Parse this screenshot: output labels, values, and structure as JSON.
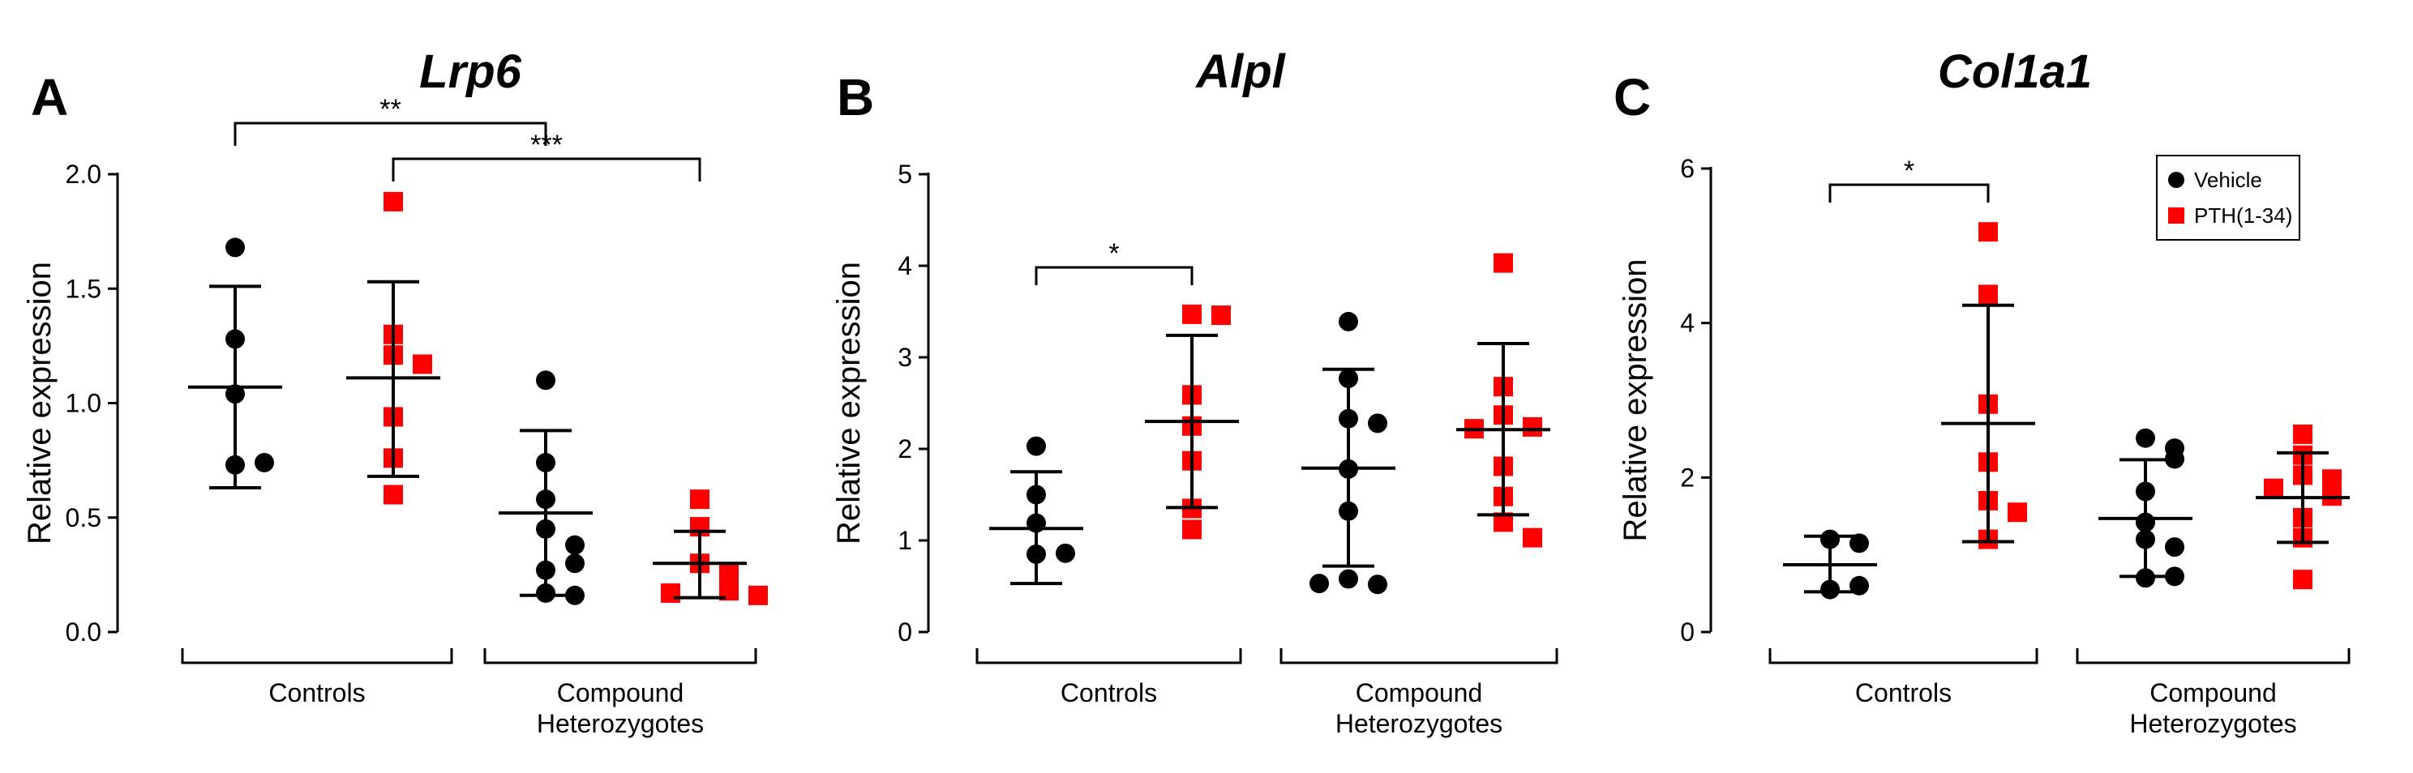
{
  "chart_data": [
    {
      "type": "scatter",
      "panel_letter": "A",
      "title": "Lrp6",
      "ylabel": "Relative expression",
      "ylim": [
        0,
        2.0
      ],
      "yticks": [
        0.0,
        0.5,
        1.0,
        1.5,
        2.0
      ],
      "ytick_labels": [
        "0.0",
        "0.5",
        "1.0",
        "1.5",
        "2.0"
      ],
      "groups": [
        {
          "label": "Controls",
          "columns": [
            0,
            1
          ]
        },
        {
          "label": "Compound Heterozygotes",
          "label_lines": [
            "Compound",
            "Heterozygotes"
          ],
          "columns": [
            2,
            3
          ]
        }
      ],
      "series": [
        {
          "name": "Vehicle",
          "group": "Controls",
          "values": [
            1.68,
            1.28,
            1.04,
            0.73,
            0.74
          ],
          "mean": 1.07,
          "sd_upper": 1.51,
          "sd_lower": 0.63
        },
        {
          "name": "PTH(1-34)",
          "group": "Controls",
          "values": [
            1.88,
            1.3,
            1.21,
            1.17,
            0.94,
            0.76,
            0.6
          ],
          "mean": 1.11,
          "sd_upper": 1.53,
          "sd_lower": 0.68
        },
        {
          "name": "Vehicle",
          "group": "Compound Heterozygotes",
          "values": [
            1.1,
            0.74,
            0.58,
            0.45,
            0.38,
            0.27,
            0.3,
            0.17,
            0.16
          ],
          "mean": 0.52,
          "sd_upper": 0.88,
          "sd_lower": 0.16
        },
        {
          "name": "PTH(1-34)",
          "group": "Compound Heterozygotes",
          "values": [
            0.58,
            0.46,
            0.3,
            0.26,
            0.22,
            0.18,
            0.17,
            0.16
          ],
          "mean": 0.3,
          "sd_upper": 0.44,
          "sd_lower": 0.15
        }
      ],
      "significance": [
        {
          "from": 0,
          "to": 2,
          "label": "**"
        },
        {
          "from": 1,
          "to": 3,
          "label": "***"
        }
      ]
    },
    {
      "type": "scatter",
      "panel_letter": "B",
      "title": "Alpl",
      "ylabel": "Relative expression",
      "ylim": [
        0,
        5
      ],
      "yticks": [
        0,
        1,
        2,
        3,
        4,
        5
      ],
      "ytick_labels": [
        "0",
        "1",
        "2",
        "3",
        "4",
        "5"
      ],
      "groups": [
        {
          "label": "Controls",
          "columns": [
            0,
            1
          ]
        },
        {
          "label": "Compound Heterozygotes",
          "label_lines": [
            "Compound",
            "Heterozygotes"
          ],
          "columns": [
            2,
            3
          ]
        }
      ],
      "series": [
        {
          "name": "Vehicle",
          "group": "Controls",
          "values": [
            2.03,
            1.5,
            1.19,
            0.85,
            0.86
          ],
          "mean": 1.13,
          "sd_upper": 1.75,
          "sd_lower": 0.53
        },
        {
          "name": "PTH(1-34)",
          "group": "Controls",
          "values": [
            3.47,
            3.46,
            2.59,
            2.25,
            1.87,
            1.35,
            1.12
          ],
          "mean": 2.3,
          "sd_upper": 3.24,
          "sd_lower": 1.36
        },
        {
          "name": "Vehicle",
          "group": "Compound Heterozygotes",
          "values": [
            3.39,
            2.77,
            2.33,
            2.28,
            1.78,
            1.32,
            0.58,
            0.52,
            0.53
          ],
          "mean": 1.79,
          "sd_upper": 2.87,
          "sd_lower": 0.72
        },
        {
          "name": "PTH(1-34)",
          "group": "Compound Heterozygotes",
          "values": [
            4.03,
            2.68,
            2.37,
            2.24,
            2.22,
            1.81,
            1.48,
            1.2,
            1.03
          ],
          "mean": 2.21,
          "sd_upper": 3.15,
          "sd_lower": 1.28
        }
      ],
      "significance": [
        {
          "from": 0,
          "to": 1,
          "label": "*"
        }
      ]
    },
    {
      "type": "scatter",
      "panel_letter": "C",
      "title": "Col1a1",
      "ylabel": "Relative expression",
      "ylim": [
        0,
        6
      ],
      "yticks": [
        0,
        2,
        4,
        6
      ],
      "ytick_labels": [
        "0",
        "2",
        "4",
        "6"
      ],
      "groups": [
        {
          "label": "Controls",
          "columns": [
            0,
            1
          ]
        },
        {
          "label": "Compound Heterozygotes",
          "label_lines": [
            "Compound",
            "Heterozygotes"
          ],
          "columns": [
            2,
            3
          ]
        }
      ],
      "series": [
        {
          "name": "Vehicle",
          "group": "Controls",
          "values": [
            1.2,
            1.15,
            0.55,
            0.6
          ],
          "mean": 0.87,
          "sd_upper": 1.24,
          "sd_lower": 0.52
        },
        {
          "name": "PTH(1-34)",
          "group": "Controls",
          "values": [
            5.18,
            4.37,
            2.95,
            2.2,
            1.7,
            1.55,
            1.2
          ],
          "mean": 2.7,
          "sd_upper": 4.23,
          "sd_lower": 1.17
        },
        {
          "name": "Vehicle",
          "group": "Compound Heterozygotes",
          "values": [
            2.51,
            2.38,
            2.24,
            1.82,
            1.42,
            1.2,
            1.1,
            0.7,
            0.72
          ],
          "mean": 1.47,
          "sd_upper": 2.23,
          "sd_lower": 0.72
        },
        {
          "name": "PTH(1-34)",
          "group": "Compound Heterozygotes",
          "values": [
            2.56,
            2.29,
            2.03,
            1.98,
            1.86,
            1.76,
            1.48,
            1.22,
            0.68
          ],
          "mean": 1.74,
          "sd_upper": 2.32,
          "sd_lower": 1.16
        }
      ],
      "significance": [
        {
          "from": 0,
          "to": 1,
          "label": "*"
        }
      ],
      "legend": {
        "placement": "top-right",
        "entries": [
          {
            "label": "Vehicle",
            "marker": "circle",
            "color": "#000000"
          },
          {
            "label": "PTH(1-34)",
            "marker": "square",
            "color": "#ff0000"
          }
        ]
      }
    }
  ],
  "colors": {
    "vehicle": "#000000",
    "pth": "#ff0000",
    "axis": "#000000"
  }
}
